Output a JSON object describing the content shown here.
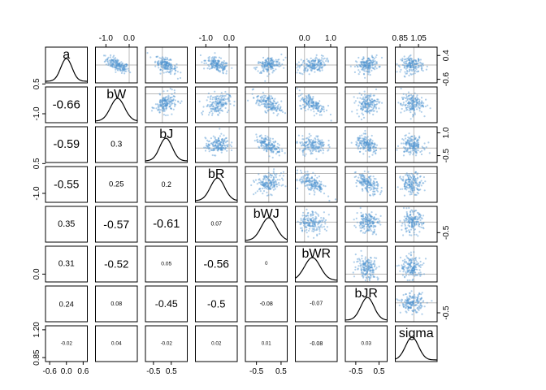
{
  "chart_data": {
    "type": "scatter-matrix",
    "variables": [
      "a",
      "bW",
      "bJ",
      "bR",
      "bWJ",
      "bWR",
      "bJR",
      "sigma"
    ],
    "point_color": "#4f95d0",
    "correlations": [
      [
        null,
        null,
        null,
        null,
        null,
        null,
        null,
        null
      ],
      [
        "-0.66",
        null,
        null,
        null,
        null,
        null,
        null,
        null
      ],
      [
        "-0.59",
        "0.3",
        null,
        null,
        null,
        null,
        null,
        null
      ],
      [
        "-0.55",
        "0.25",
        "0.2",
        null,
        null,
        null,
        null,
        null
      ],
      [
        "0.35",
        "-0.57",
        "-0.61",
        "0.07",
        null,
        null,
        null,
        null
      ],
      [
        "0.31",
        "-0.52",
        "0.05",
        "-0.56",
        "0",
        null,
        null,
        null
      ],
      [
        "0.24",
        "0.08",
        "-0.45",
        "-0.5",
        "-0.08",
        "-0.07",
        null,
        null
      ],
      [
        "-0.02",
        "0.04",
        "-0.02",
        "0.02",
        "0.01",
        "-0.08",
        "0.03",
        null
      ]
    ],
    "ranges": {
      "a": [
        -0.75,
        0.75
      ],
      "bW": [
        -1.45,
        0.35
      ],
      "bJ": [
        -0.95,
        1.4
      ],
      "bR": [
        -1.45,
        0.35
      ],
      "bWJ": [
        -0.95,
        0.75
      ],
      "bWR": [
        -0.35,
        1.25
      ],
      "bJR": [
        -0.95,
        0.85
      ],
      "sigma": [
        0.8,
        1.25
      ]
    },
    "means": {
      "a": 0.0,
      "bW": -0.5,
      "bJ": 0.2,
      "bR": -0.5,
      "bWJ": 0.0,
      "bWR": 0.3,
      "bJR": 0.0,
      "sigma": 0.98
    },
    "sds": {
      "a": 0.2,
      "bW": 0.3,
      "bJ": 0.35,
      "bR": 0.3,
      "bWJ": 0.3,
      "bWR": 0.3,
      "bJR": 0.28,
      "sigma": 0.07
    },
    "axes": {
      "top": [
        {
          "col": 1,
          "ticks": [
            -1.0,
            0.0
          ],
          "labels": [
            "-1.0",
            "0.0"
          ]
        },
        {
          "col": 3,
          "ticks": [
            -1.0,
            0.0
          ],
          "labels": [
            "-1.0",
            "0.0"
          ]
        },
        {
          "col": 5,
          "ticks": [
            0.0,
            1.0
          ],
          "labels": [
            "0.0",
            "1.0"
          ]
        },
        {
          "col": 7,
          "ticks": [
            0.85,
            1.05
          ],
          "labels": [
            "0.85",
            "1.05"
          ]
        }
      ],
      "bottom": [
        {
          "col": 0,
          "ticks": [
            -0.6,
            0.0,
            0.6
          ],
          "labels": [
            "-0.6",
            "0.0",
            "0.6"
          ]
        },
        {
          "col": 2,
          "ticks": [
            -0.5,
            0.5
          ],
          "labels": [
            "-0.5",
            "0.5"
          ]
        },
        {
          "col": 4,
          "ticks": [
            -0.5,
            0.5
          ],
          "labels": [
            "-0.5",
            "0.5"
          ]
        },
        {
          "col": 6,
          "ticks": [
            -0.5,
            0.5
          ],
          "labels": [
            "-0.5",
            "0.5"
          ]
        }
      ],
      "left": [
        {
          "row": 1,
          "ticks": [
            -1.0,
            0.5
          ],
          "labels": [
            "-1.0",
            "0.5"
          ]
        },
        {
          "row": 3,
          "ticks": [
            -1.0,
            0.5
          ],
          "labels": [
            "-1.0",
            "0.5"
          ]
        },
        {
          "row": 5,
          "ticks": [
            0.0
          ],
          "labels": [
            "0.0"
          ]
        },
        {
          "row": 7,
          "ticks": [
            0.85,
            1.2
          ],
          "labels": [
            "0.85",
            "1.20"
          ]
        }
      ],
      "right": [
        {
          "row": 0,
          "ticks": [
            -0.6,
            0.4
          ],
          "labels": [
            "-0.6",
            "0.4"
          ]
        },
        {
          "row": 2,
          "ticks": [
            -0.5,
            1.0
          ],
          "labels": [
            "-0.5",
            "1.0"
          ]
        },
        {
          "row": 4,
          "ticks": [
            -0.5
          ],
          "labels": [
            "-0.5"
          ]
        },
        {
          "row": 6,
          "ticks": [
            -0.5
          ],
          "labels": [
            "-0.5"
          ]
        }
      ]
    }
  }
}
